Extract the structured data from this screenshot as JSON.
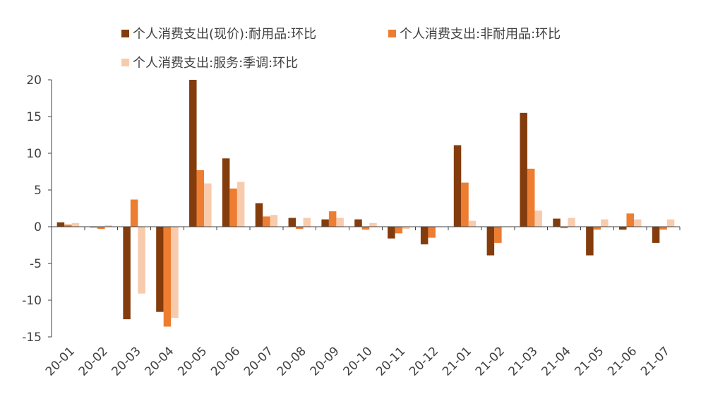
{
  "chart_data": {
    "type": "bar",
    "title": "",
    "xlabel": "",
    "ylabel": "",
    "ylim": [
      -15,
      20
    ],
    "yticks": [
      20,
      15,
      10,
      5,
      0,
      -5,
      -10,
      -15
    ],
    "grid": false,
    "legend_position": "top",
    "categories": [
      "20-01",
      "20-02",
      "20-03",
      "20-04",
      "20-05",
      "20-06",
      "20-07",
      "20-08",
      "20-09",
      "20-10",
      "20-11",
      "20-12",
      "21-01",
      "21-02",
      "21-03",
      "21-04",
      "21-05",
      "21-06",
      "21-07"
    ],
    "series": [
      {
        "name": "个人消费支出(现价):耐用品:环比",
        "color": "#843C0C",
        "values": [
          0.6,
          -0.1,
          -12.6,
          -11.6,
          20.0,
          9.3,
          3.2,
          1.2,
          1.0,
          1.0,
          -1.6,
          -2.4,
          11.1,
          -3.9,
          15.5,
          1.1,
          -3.9,
          -0.4,
          -2.2
        ]
      },
      {
        "name": "个人消费支出:非耐用品:环比",
        "color": "#ED7D31",
        "values": [
          0.3,
          -0.3,
          3.7,
          -13.6,
          7.7,
          5.2,
          1.4,
          -0.3,
          2.1,
          -0.4,
          -0.9,
          -1.5,
          6.0,
          -2.2,
          7.9,
          -0.2,
          -0.4,
          1.8,
          -0.4
        ]
      },
      {
        "name": "个人消费支出:服务:季调:环比",
        "color": "#F8CBAD",
        "values": [
          0.5,
          0.2,
          -9.1,
          -12.4,
          5.9,
          6.1,
          1.6,
          1.2,
          1.2,
          0.5,
          -0.3,
          0.0,
          0.8,
          0.0,
          2.2,
          1.2,
          1.0,
          1.0,
          1.0
        ]
      }
    ]
  }
}
